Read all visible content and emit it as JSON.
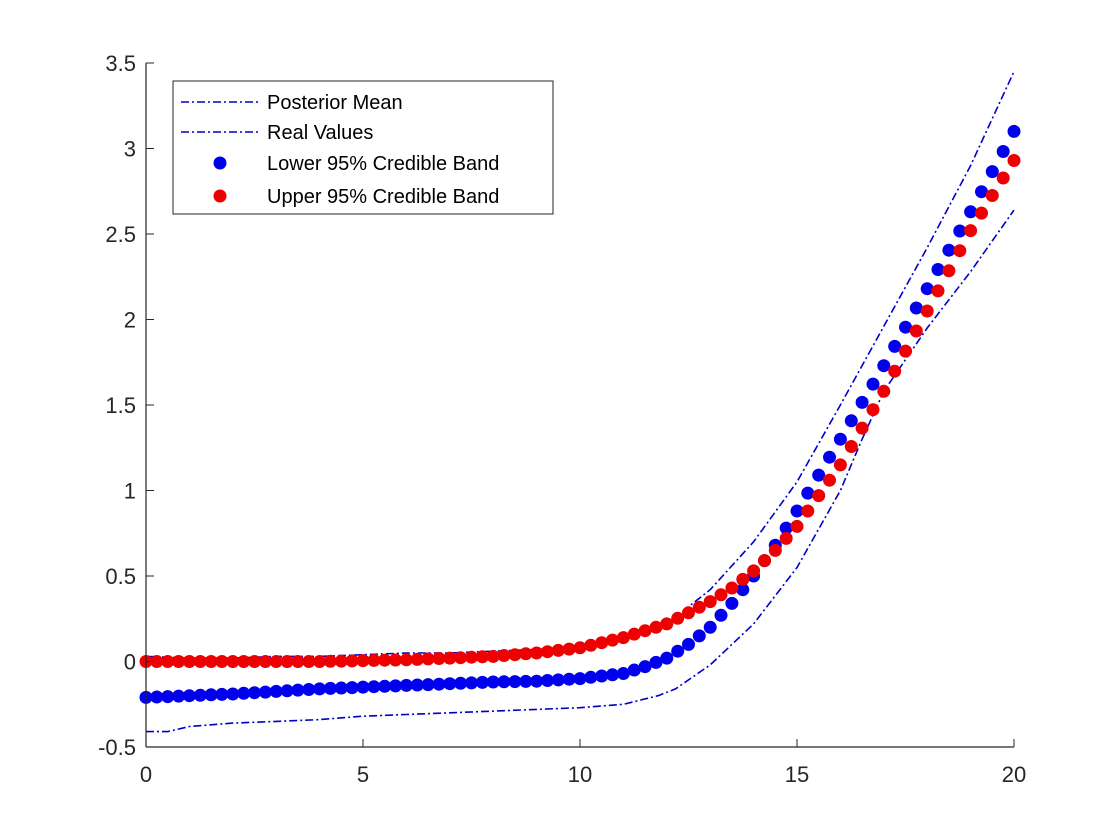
{
  "chart_data": {
    "type": "line",
    "title": "",
    "xlabel": "",
    "ylabel": "",
    "xlim": [
      0,
      20
    ],
    "ylim": [
      -0.5,
      3.5
    ],
    "xticks": [
      {
        "value": 0,
        "label": "0"
      },
      {
        "value": 5,
        "label": "5"
      },
      {
        "value": 10,
        "label": "10"
      },
      {
        "value": 15,
        "label": "15"
      },
      {
        "value": 20,
        "label": "20"
      }
    ],
    "yticks": [
      {
        "value": -0.5,
        "label": "-0.5"
      },
      {
        "value": 0,
        "label": "0"
      },
      {
        "value": 0.5,
        "label": "0.5"
      },
      {
        "value": 1,
        "label": "1"
      },
      {
        "value": 1.5,
        "label": "1.5"
      },
      {
        "value": 2,
        "label": "2"
      },
      {
        "value": 2.5,
        "label": "2.5"
      },
      {
        "value": 3,
        "label": "3"
      },
      {
        "value": 3.5,
        "label": "3.5"
      }
    ],
    "grid": false,
    "legend": "top-left",
    "series": [
      {
        "name": "Posterior Mean",
        "style": "dashdot",
        "color": "#0000cc",
        "points": [
          [
            0,
            0.03
          ],
          [
            1,
            0.02
          ],
          [
            2,
            0.02
          ],
          [
            3,
            0.03
          ],
          [
            4,
            0.03
          ],
          [
            5,
            0.04
          ],
          [
            6,
            0.05
          ],
          [
            7,
            0.05
          ],
          [
            8,
            0.06
          ],
          [
            9,
            0.07
          ],
          [
            10,
            0.09
          ],
          [
            11,
            0.13
          ],
          [
            12,
            0.22
          ],
          [
            12.5,
            0.32
          ],
          [
            13,
            0.42
          ],
          [
            14,
            0.7
          ],
          [
            15,
            1.05
          ],
          [
            16,
            1.5
          ],
          [
            17,
            1.96
          ],
          [
            18,
            2.42
          ],
          [
            19,
            2.9
          ],
          [
            20,
            3.45
          ]
        ]
      },
      {
        "name": "Real Values",
        "style": "dashdot",
        "color": "#0000cc",
        "points": [
          [
            0,
            -0.41
          ],
          [
            0.5,
            -0.41
          ],
          [
            1,
            -0.38
          ],
          [
            2,
            -0.36
          ],
          [
            3,
            -0.35
          ],
          [
            4,
            -0.34
          ],
          [
            5,
            -0.32
          ],
          [
            6,
            -0.31
          ],
          [
            7,
            -0.3
          ],
          [
            8,
            -0.29
          ],
          [
            9,
            -0.28
          ],
          [
            10,
            -0.27
          ],
          [
            11,
            -0.25
          ],
          [
            11.8,
            -0.2
          ],
          [
            12.2,
            -0.16
          ],
          [
            13,
            -0.02
          ],
          [
            14,
            0.22
          ],
          [
            15,
            0.55
          ],
          [
            16,
            1.0
          ],
          [
            16.5,
            1.3
          ],
          [
            17,
            1.58
          ],
          [
            18,
            1.95
          ],
          [
            19,
            2.28
          ],
          [
            20,
            2.64
          ]
        ]
      },
      {
        "name": "Lower 95% Credible Band",
        "style": "markers",
        "color": "#0000ee",
        "x_start": 0,
        "x_end": 20,
        "count": 81,
        "curve": [
          [
            0,
            -0.21
          ],
          [
            2,
            -0.19
          ],
          [
            4,
            -0.16
          ],
          [
            6,
            -0.14
          ],
          [
            8,
            -0.12
          ],
          [
            9,
            -0.115
          ],
          [
            10,
            -0.1
          ],
          [
            11,
            -0.07
          ],
          [
            11.5,
            -0.03
          ],
          [
            12,
            0.02
          ],
          [
            12.5,
            0.1
          ],
          [
            13,
            0.2
          ],
          [
            13.5,
            0.34
          ],
          [
            14,
            0.5
          ],
          [
            14.5,
            0.68
          ],
          [
            15,
            0.88
          ],
          [
            16,
            1.3
          ],
          [
            17,
            1.73
          ],
          [
            18,
            2.18
          ],
          [
            19,
            2.63
          ],
          [
            20,
            3.1
          ]
        ]
      },
      {
        "name": "Upper 95% Credible Band",
        "style": "markers",
        "color": "#ee0000",
        "x_start": 0,
        "x_end": 20,
        "count": 81,
        "curve": [
          [
            0,
            0.0
          ],
          [
            2,
            0.0
          ],
          [
            4,
            0.0
          ],
          [
            6,
            0.01
          ],
          [
            8,
            0.03
          ],
          [
            9,
            0.05
          ],
          [
            10,
            0.08
          ],
          [
            11,
            0.14
          ],
          [
            12,
            0.22
          ],
          [
            13,
            0.35
          ],
          [
            13.5,
            0.43
          ],
          [
            14,
            0.53
          ],
          [
            14.5,
            0.65
          ],
          [
            15,
            0.79
          ],
          [
            16,
            1.15
          ],
          [
            17,
            1.58
          ],
          [
            18,
            2.05
          ],
          [
            19,
            2.52
          ],
          [
            20,
            2.93
          ]
        ]
      }
    ]
  }
}
